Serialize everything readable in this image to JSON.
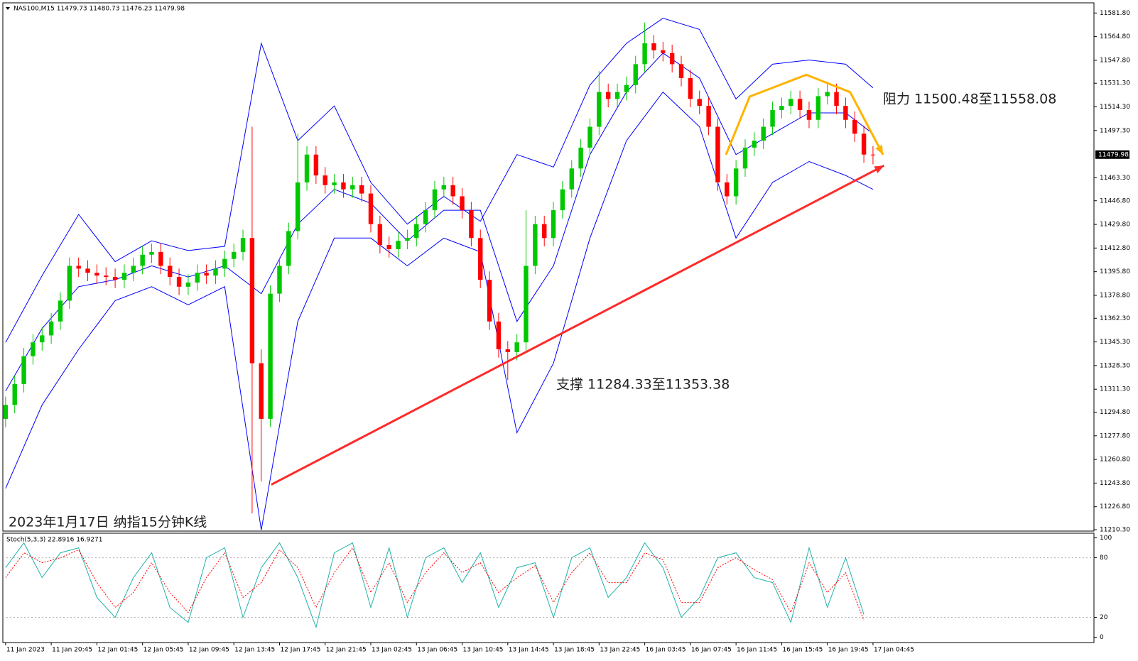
{
  "chart_data": [
    {
      "type": "candlestick",
      "title": "NAS100,M15  11479.73 11480.73 11476.23 11479.98",
      "open": [
        11290,
        11300,
        11315,
        11335,
        11345,
        11350,
        11360,
        11375,
        11400,
        11398,
        11395,
        11393,
        11392,
        11390,
        11395,
        11400,
        11408,
        11410,
        11400,
        11392,
        11385,
        11388,
        11395,
        11393,
        11398,
        11405,
        11410,
        11420,
        11330,
        11290,
        11380,
        11400,
        11425,
        11460,
        11480,
        11465,
        11458,
        11460,
        11455,
        11458,
        11452,
        11430,
        11415,
        11412,
        11418,
        11420,
        11430,
        11440,
        11455,
        11458,
        11450,
        11440,
        11420,
        11390,
        11360,
        11340,
        11338,
        11345,
        11400,
        11430,
        11420,
        11440,
        11455,
        11470,
        11485,
        11500,
        11525,
        11520,
        11525,
        11530,
        11545,
        11560,
        11555,
        11553,
        11545,
        11535,
        11520,
        11515,
        11500,
        11460,
        11450,
        11470,
        11485,
        11490,
        11500,
        11512,
        11515,
        11520,
        11512,
        11505,
        11522,
        11525,
        11515,
        11505,
        11495,
        11480
      ],
      "high": [
        11306,
        11321,
        11341,
        11351,
        11356,
        11366,
        11381,
        11406,
        11406,
        11404,
        11401,
        11399,
        11398,
        11401,
        11406,
        11414,
        11416,
        11416,
        11406,
        11398,
        11394,
        11401,
        11401,
        11404,
        11411,
        11416,
        11426,
        11500,
        11340,
        11386,
        11406,
        11431,
        11495,
        11486,
        11486,
        11471,
        11466,
        11466,
        11464,
        11464,
        11458,
        11436,
        11421,
        11424,
        11426,
        11436,
        11446,
        11461,
        11464,
        11464,
        11456,
        11446,
        11426,
        11396,
        11366,
        11346,
        11351,
        11440,
        11436,
        11436,
        11446,
        11461,
        11476,
        11491,
        11506,
        11540,
        11531,
        11531,
        11536,
        11551,
        11575,
        11566,
        11561,
        11559,
        11551,
        11541,
        11526,
        11521,
        11506,
        11466,
        11476,
        11491,
        11496,
        11506,
        11518,
        11521,
        11526,
        11526,
        11518,
        11528,
        11531,
        11531,
        11521,
        11511,
        11501,
        11486
      ],
      "low": [
        11284,
        11294,
        11309,
        11329,
        11339,
        11344,
        11354,
        11369,
        11392,
        11389,
        11387,
        11386,
        11384,
        11384,
        11389,
        11394,
        11402,
        11394,
        11386,
        11379,
        11379,
        11382,
        11387,
        11387,
        11392,
        11399,
        11404,
        11222,
        11245,
        11284,
        11374,
        11394,
        11419,
        11454,
        11459,
        11452,
        11452,
        11449,
        11449,
        11446,
        11424,
        11409,
        11406,
        11406,
        11412,
        11414,
        11424,
        11434,
        11449,
        11444,
        11434,
        11414,
        11384,
        11354,
        11334,
        11318,
        11332,
        11339,
        11394,
        11414,
        11414,
        11434,
        11449,
        11464,
        11479,
        11494,
        11514,
        11514,
        11519,
        11524,
        11539,
        11549,
        11547,
        11539,
        11529,
        11514,
        11509,
        11494,
        11454,
        11444,
        11444,
        11464,
        11479,
        11484,
        11494,
        11506,
        11509,
        11506,
        11499,
        11499,
        11516,
        11509,
        11499,
        11489,
        11474,
        11473
      ],
      "close": [
        11300,
        11315,
        11335,
        11345,
        11350,
        11360,
        11375,
        11400,
        11398,
        11395,
        11393,
        11392,
        11390,
        11395,
        11400,
        11408,
        11410,
        11400,
        11392,
        11385,
        11388,
        11395,
        11393,
        11398,
        11405,
        11410,
        11420,
        11330,
        11290,
        11380,
        11400,
        11425,
        11460,
        11480,
        11465,
        11458,
        11460,
        11455,
        11458,
        11452,
        11430,
        11415,
        11412,
        11418,
        11420,
        11430,
        11440,
        11455,
        11458,
        11450,
        11440,
        11420,
        11390,
        11360,
        11340,
        11338,
        11345,
        11400,
        11430,
        11420,
        11440,
        11455,
        11470,
        11485,
        11500,
        11525,
        11520,
        11525,
        11530,
        11545,
        11560,
        11555,
        11553,
        11545,
        11535,
        11520,
        11515,
        11500,
        11460,
        11450,
        11470,
        11485,
        11490,
        11500,
        11512,
        11515,
        11520,
        11512,
        11505,
        11522,
        11525,
        11515,
        11505,
        11495,
        11480,
        11479.98
      ],
      "up_color": "#00c800",
      "down_color": "#ff0000",
      "xlim": [
        -0.3,
        119.2
      ],
      "ylim": [
        11209.3,
        11589.1
      ],
      "yticks": [
        {
          "value": 11581.8,
          "label": "11581.80"
        },
        {
          "value": 11564.8,
          "label": "11564.80"
        },
        {
          "value": 11547.8,
          "label": "11547.80"
        },
        {
          "value": 11531.3,
          "label": "11531.30"
        },
        {
          "value": 11514.3,
          "label": "11514.30"
        },
        {
          "value": 11497.3,
          "label": "11497.30"
        },
        {
          "value": 11463.3,
          "label": "11463.30"
        },
        {
          "value": 11446.8,
          "label": "11446.80"
        },
        {
          "value": 11429.8,
          "label": "11429.80"
        },
        {
          "value": 11412.8,
          "label": "11412.80"
        },
        {
          "value": 11395.8,
          "label": "11395.80"
        },
        {
          "value": 11378.8,
          "label": "11378.80"
        },
        {
          "value": 11362.3,
          "label": "11362.30"
        },
        {
          "value": 11345.3,
          "label": "11345.30"
        },
        {
          "value": 11328.3,
          "label": "11328.30"
        },
        {
          "value": 11311.3,
          "label": "11311.30"
        },
        {
          "value": 11294.8,
          "label": "11294.80"
        },
        {
          "value": 11277.8,
          "label": "11277.80"
        },
        {
          "value": 11260.8,
          "label": "11260.80"
        },
        {
          "value": 11243.8,
          "label": "11243.80"
        },
        {
          "value": 11226.8,
          "label": "11226.80"
        },
        {
          "value": 11210.3,
          "label": "11210.30"
        }
      ],
      "current_price": 11479.98,
      "bands": {
        "color": "#0000ff",
        "x": [
          0,
          4,
          8,
          12,
          16,
          20,
          24,
          28,
          32,
          36,
          40,
          44,
          48,
          52,
          56,
          60,
          64,
          68,
          72,
          76,
          80,
          84,
          88,
          92,
          95
        ],
        "upper": [
          11345,
          11393,
          11437,
          11403,
          11418,
          11411,
          11414,
          11560,
          11490,
          11515,
          11460,
          11430,
          11450,
          11432,
          11480,
          11471,
          11530,
          11560,
          11578,
          11570,
          11520,
          11545,
          11548,
          11545,
          11528
        ],
        "middle": [
          11310,
          11355,
          11385,
          11390,
          11400,
          11392,
          11400,
          11380,
          11430,
          11455,
          11445,
          11418,
          11440,
          11440,
          11360,
          11400,
          11480,
          11525,
          11553,
          11535,
          11480,
          11495,
          11510,
          11510,
          11495
        ],
        "lower": [
          11240,
          11300,
          11340,
          11375,
          11385,
          11372,
          11385,
          11210,
          11360,
          11420,
          11420,
          11400,
          11420,
          11410,
          11280,
          11330,
          11420,
          11490,
          11525,
          11500,
          11420,
          11460,
          11475,
          11465,
          11455
        ]
      },
      "trendlines": [
        {
          "color": "#ff2a2a",
          "x": [
            29.1,
            96.2
          ],
          "y": [
            11242.7,
            11472.1
          ]
        },
        {
          "color": "#ffb300",
          "x": [
            78.9,
            81.5,
            87.7,
            92.5,
            96.1
          ],
          "y": [
            11479.9,
            11521.7,
            11537.4,
            11524.9,
            11479.9
          ]
        }
      ],
      "annotations": [
        "阻力 11500.48至11558.08",
        "支撑 11284.33至11353.38",
        "2023年1月17日 纳指15分钟K线"
      ]
    },
    {
      "type": "line",
      "title": "Stoch(5,3,3) 22.8916 16.9271",
      "x": [
        0,
        2,
        4,
        6,
        8,
        10,
        12,
        14,
        16,
        18,
        20,
        22,
        24,
        26,
        28,
        30,
        32,
        34,
        36,
        38,
        40,
        42,
        44,
        46,
        48,
        50,
        52,
        54,
        56,
        58,
        60,
        62,
        64,
        66,
        68,
        70,
        72,
        74,
        76,
        78,
        80,
        82,
        84,
        86,
        88,
        90,
        92,
        94
      ],
      "series": [
        {
          "color": "#20b2aa",
          "values": [
            70,
            95,
            60,
            85,
            90,
            40,
            20,
            60,
            85,
            30,
            15,
            80,
            90,
            20,
            70,
            95,
            60,
            10,
            85,
            95,
            30,
            90,
            20,
            80,
            90,
            55,
            85,
            30,
            70,
            75,
            20,
            80,
            90,
            40,
            60,
            95,
            70,
            20,
            40,
            80,
            85,
            60,
            55,
            15,
            90,
            30,
            80,
            22.8916
          ]
        },
        {
          "color": "#ff0000",
          "dashed": true,
          "values": [
            60,
            85,
            75,
            80,
            88,
            55,
            30,
            45,
            75,
            45,
            25,
            60,
            85,
            40,
            55,
            88,
            70,
            30,
            65,
            90,
            45,
            75,
            35,
            65,
            85,
            65,
            75,
            45,
            60,
            72,
            35,
            65,
            85,
            55,
            55,
            85,
            78,
            35,
            35,
            70,
            80,
            68,
            58,
            25,
            75,
            45,
            65,
            16.9271
          ]
        }
      ],
      "xlim": [
        -0.3,
        119.2
      ],
      "ylim": [
        -5.3,
        104.7
      ],
      "yticks": [
        0,
        20,
        80,
        100
      ],
      "levels": [
        20,
        80
      ],
      "xticks": [
        {
          "value": 0,
          "label": "11 Jan 2023"
        },
        {
          "value": 5,
          "label": "11 Jan 20:45"
        },
        {
          "value": 10,
          "label": "12 Jan 01:45"
        },
        {
          "value": 15,
          "label": "12 Jan 05:45"
        },
        {
          "value": 20,
          "label": "12 Jan 09:45"
        },
        {
          "value": 25,
          "label": "12 Jan 13:45"
        },
        {
          "value": 30,
          "label": "12 Jan 17:45"
        },
        {
          "value": 35,
          "label": "12 Jan 21:45"
        },
        {
          "value": 40,
          "label": "13 Jan 02:45"
        },
        {
          "value": 45,
          "label": "13 Jan 06:45"
        },
        {
          "value": 50,
          "label": "13 Jan 10:45"
        },
        {
          "value": 55,
          "label": "13 Jan 14:45"
        },
        {
          "value": 60,
          "label": "13 Jan 18:45"
        },
        {
          "value": 65,
          "label": "13 Jan 22:45"
        },
        {
          "value": 70,
          "label": "16 Jan 03:45"
        },
        {
          "value": 75,
          "label": "16 Jan 07:45"
        },
        {
          "value": 80,
          "label": "16 Jan 11:45"
        },
        {
          "value": 85,
          "label": "16 Jan 15:45"
        },
        {
          "value": 90,
          "label": "16 Jan 19:45"
        },
        {
          "value": 95,
          "label": "17 Jan 04:45"
        }
      ]
    }
  ]
}
